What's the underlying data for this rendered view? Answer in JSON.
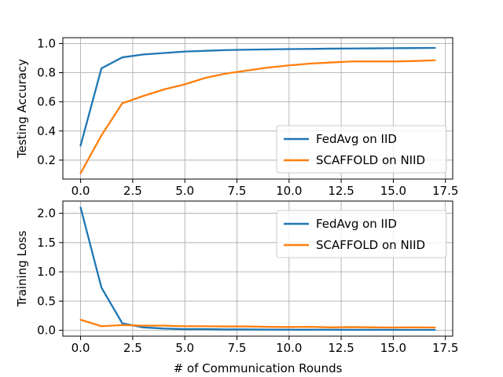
{
  "chart_data": [
    {
      "type": "line",
      "xlabel": "",
      "ylabel": "Testing Accuracy",
      "xlim": [
        -0.85,
        17.85
      ],
      "ylim": [
        0.07,
        1.04
      ],
      "grid": true,
      "legend_position": "lower-right",
      "xticks": [
        0.0,
        2.5,
        5.0,
        7.5,
        10.0,
        12.5,
        15.0,
        17.5
      ],
      "xtick_labels": [
        "0.0",
        "2.5",
        "5.0",
        "7.5",
        "10.0",
        "12.5",
        "15.0",
        "17.5"
      ],
      "yticks": [
        0.2,
        0.4,
        0.6,
        0.8,
        1.0
      ],
      "ytick_labels": [
        "0.2",
        "0.4",
        "0.6",
        "0.8",
        "1.0"
      ],
      "x": [
        0,
        1,
        2,
        3,
        4,
        5,
        6,
        7,
        8,
        9,
        10,
        11,
        12,
        13,
        14,
        15,
        16,
        17
      ],
      "series": [
        {
          "name": "FedAvg on IID",
          "color": "#1f77b4",
          "values": [
            0.3,
            0.83,
            0.905,
            0.925,
            0.935,
            0.945,
            0.95,
            0.955,
            0.958,
            0.96,
            0.962,
            0.963,
            0.965,
            0.966,
            0.967,
            0.968,
            0.969,
            0.97
          ]
        },
        {
          "name": "SCAFFOLD on NIID",
          "color": "#ff7f0e",
          "values": [
            0.11,
            0.37,
            0.59,
            0.64,
            0.685,
            0.72,
            0.765,
            0.795,
            0.815,
            0.835,
            0.85,
            0.862,
            0.87,
            0.877,
            0.877,
            0.877,
            0.88,
            0.885
          ]
        }
      ]
    },
    {
      "type": "line",
      "xlabel": "# of Communication Rounds",
      "ylabel": "Training Loss",
      "xlim": [
        -0.85,
        17.85
      ],
      "ylim": [
        -0.1,
        2.21
      ],
      "grid": true,
      "legend_position": "upper-right",
      "xticks": [
        0.0,
        2.5,
        5.0,
        7.5,
        10.0,
        12.5,
        15.0,
        17.5
      ],
      "xtick_labels": [
        "0.0",
        "2.5",
        "5.0",
        "7.5",
        "10.0",
        "12.5",
        "15.0",
        "17.5"
      ],
      "yticks": [
        0.0,
        0.5,
        1.0,
        1.5,
        2.0
      ],
      "ytick_labels": [
        "0.0",
        "0.5",
        "1.0",
        "1.5",
        "2.0"
      ],
      "x": [
        0,
        1,
        2,
        3,
        4,
        5,
        6,
        7,
        8,
        9,
        10,
        11,
        12,
        13,
        14,
        15,
        16,
        17
      ],
      "series": [
        {
          "name": "FedAvg on IID",
          "color": "#1f77b4",
          "values": [
            2.1,
            0.73,
            0.12,
            0.05,
            0.03,
            0.02,
            0.02,
            0.015,
            0.015,
            0.012,
            0.01,
            0.01,
            0.01,
            0.008,
            0.008,
            0.008,
            0.007,
            0.007
          ]
        },
        {
          "name": "SCAFFOLD on NIID",
          "color": "#ff7f0e",
          "values": [
            0.18,
            0.07,
            0.09,
            0.08,
            0.08,
            0.07,
            0.07,
            0.065,
            0.065,
            0.06,
            0.055,
            0.06,
            0.05,
            0.055,
            0.05,
            0.048,
            0.05,
            0.048
          ]
        }
      ]
    }
  ]
}
